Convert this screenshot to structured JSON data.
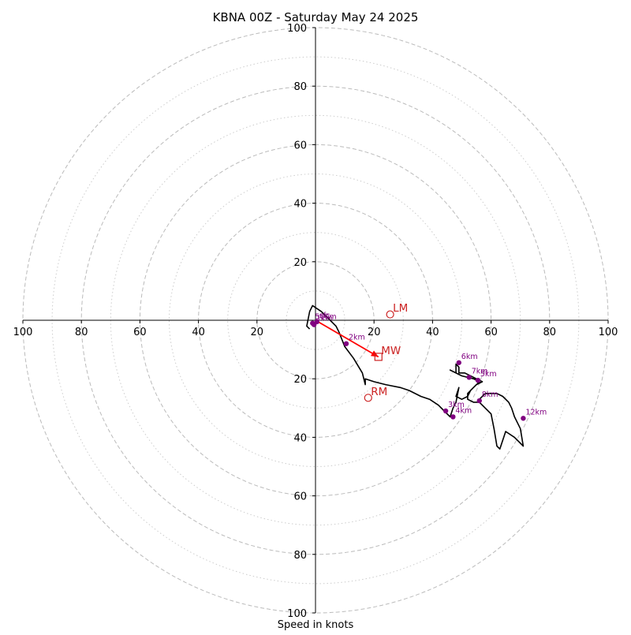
{
  "chart_data": {
    "type": "hodograph",
    "title": "KBNA 00Z - Saturday May 24 2025",
    "xlabel": "Speed in knots",
    "ylabel": "",
    "xlim": [
      -100,
      100
    ],
    "ylim": [
      -100,
      100
    ],
    "x_tick_labels": [
      "100",
      "80",
      "60",
      "40",
      "20",
      "20",
      "40",
      "60",
      "80",
      "100"
    ],
    "y_tick_labels": [
      "100",
      "80",
      "60",
      "40",
      "20",
      "20",
      "40",
      "60",
      "80",
      "100"
    ],
    "ring_speeds_major": [
      20,
      40,
      60,
      80,
      100
    ],
    "ring_speeds_minor": [
      10,
      30,
      50,
      70,
      90
    ],
    "grid": true,
    "colors": {
      "trace": "#000000",
      "height_markers": "#800080",
      "storm_motion": "#cc2222",
      "mean_wind_vector": "#ff0000",
      "rings": "#bbbbbb"
    },
    "trace": [
      [
        -2,
        -3
      ],
      [
        -3,
        -2
      ],
      [
        -2,
        3
      ],
      [
        -1,
        5
      ],
      [
        2,
        3
      ],
      [
        5,
        0
      ],
      [
        7,
        -2
      ],
      [
        8,
        -4
      ],
      [
        10,
        -9
      ],
      [
        13,
        -13
      ],
      [
        16,
        -18
      ],
      [
        17,
        -22
      ],
      [
        17,
        -20
      ],
      [
        20,
        -21
      ],
      [
        24,
        -22
      ],
      [
        29,
        -23
      ],
      [
        32,
        -24
      ],
      [
        36,
        -26
      ],
      [
        39,
        -27
      ],
      [
        42,
        -29
      ],
      [
        44,
        -31
      ],
      [
        46,
        -33
      ],
      [
        47,
        -30
      ],
      [
        48,
        -28
      ],
      [
        49,
        -23
      ],
      [
        48,
        -26
      ],
      [
        50,
        -27
      ],
      [
        52,
        -26
      ],
      [
        53,
        -24
      ],
      [
        55,
        -22
      ],
      [
        57,
        -21
      ],
      [
        55,
        -20
      ],
      [
        53,
        -19
      ],
      [
        51,
        -18
      ],
      [
        49,
        -18
      ],
      [
        49,
        -16
      ],
      [
        48,
        -15
      ],
      [
        48,
        -18
      ],
      [
        46,
        -17
      ],
      [
        50,
        -19
      ],
      [
        54,
        -20
      ],
      [
        56,
        -21
      ],
      [
        54,
        -23
      ],
      [
        52,
        -25
      ],
      [
        52,
        -27
      ],
      [
        54,
        -28
      ],
      [
        56,
        -28
      ],
      [
        58,
        -30
      ],
      [
        60,
        -32
      ],
      [
        61,
        -37
      ],
      [
        62,
        -43
      ],
      [
        63,
        -44
      ],
      [
        65,
        -38
      ],
      [
        68,
        -40
      ],
      [
        71,
        -43
      ],
      [
        70,
        -37
      ],
      [
        68,
        -33
      ],
      [
        67,
        -30
      ],
      [
        66,
        -28
      ],
      [
        64,
        -26
      ],
      [
        62,
        -25
      ],
      [
        58,
        -25
      ],
      [
        56,
        -27
      ]
    ],
    "height_markers": [
      {
        "label": "sfc",
        "u": 0.5,
        "v": -0.5
      },
      {
        "label": "1km",
        "u": -0.5,
        "v": -1.5
      },
      {
        "label": "500m",
        "u": -1,
        "v": -1
      },
      {
        "label": "2km",
        "u": 10.5,
        "v": -8
      },
      {
        "label": "3km",
        "u": 44.5,
        "v": -31
      },
      {
        "label": "4km",
        "u": 47,
        "v": -33
      },
      {
        "label": "5km",
        "u": 55.5,
        "v": -20.5
      },
      {
        "label": "6km",
        "u": 49,
        "v": -14.5
      },
      {
        "label": "7km",
        "u": 52.5,
        "v": -19.5
      },
      {
        "label": "8km",
        "u": 56,
        "v": -27.5
      },
      {
        "label": "12km",
        "u": 71,
        "v": -33.5
      }
    ],
    "storm_motions": [
      {
        "label": "LM",
        "u": 25.5,
        "v": 2,
        "marker": "circle"
      },
      {
        "label": "MW",
        "u": 21.5,
        "v": -12.5,
        "marker": "square"
      },
      {
        "label": "RM",
        "u": 18,
        "v": -26.5,
        "marker": "circle"
      }
    ],
    "mean_wind_vector": {
      "from": [
        0,
        0
      ],
      "to": [
        21.5,
        -12.5
      ]
    }
  }
}
